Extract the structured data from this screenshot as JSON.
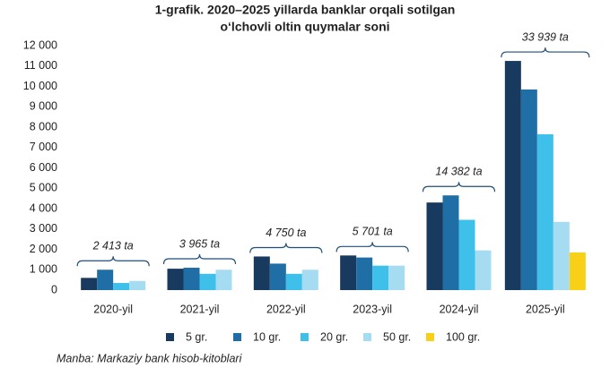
{
  "chart_data": {
    "type": "bar",
    "title": [
      "1-grafik. 2020–2025 yillarda banklar orqali sotilgan",
      "o‘lchovli oltin quymalar soni"
    ],
    "categories": [
      "2020-yil",
      "2021-yil",
      "2022-yil",
      "2023-yil",
      "2024-yil",
      "2025-yil"
    ],
    "series": [
      {
        "name": "5 gr.",
        "color": "#183a5e",
        "values": [
          600,
          1050,
          1650,
          1700,
          4300,
          11250
        ]
      },
      {
        "name": "10 gr.",
        "color": "#1f6fa6",
        "values": [
          1000,
          1100,
          1300,
          1600,
          4650,
          9850
        ]
      },
      {
        "name": "20 gr.",
        "color": "#3ec0ea",
        "values": [
          350,
          800,
          800,
          1200,
          3450,
          7650
        ]
      },
      {
        "name": "50 gr.",
        "color": "#a6dcf1",
        "values": [
          450,
          1000,
          1000,
          1200,
          1950,
          3350
        ]
      },
      {
        "name": "100 gr.",
        "color": "#f8d117",
        "values": [
          null,
          null,
          null,
          null,
          null,
          1850
        ]
      }
    ],
    "annotations": [
      "2 413 ta",
      "3 965 ta",
      "4 750 ta",
      "5 701 ta",
      "14 382 ta",
      "33 939 ta"
    ],
    "ylim": [
      0,
      12000
    ],
    "yticks": [
      0,
      {
        "value": 1000,
        "label": "1 000"
      },
      {
        "value": 2000,
        "label": "2 000"
      },
      {
        "value": 3000,
        "label": "3 000"
      },
      {
        "value": 4000,
        "label": "4 000"
      },
      {
        "value": 5000,
        "label": "5 000"
      },
      {
        "value": 6000,
        "label": "6 000"
      },
      {
        "value": 7000,
        "label": "7 000"
      },
      {
        "value": 8000,
        "label": "8 000"
      },
      {
        "value": 9000,
        "label": "9 000"
      },
      {
        "value": 10000,
        "label": "10 000"
      },
      {
        "value": 11000,
        "label": "11 000"
      },
      {
        "value": 12000,
        "label": "12 000"
      }
    ],
    "source": "Manba: Markaziy bank hisob-kitoblari"
  }
}
